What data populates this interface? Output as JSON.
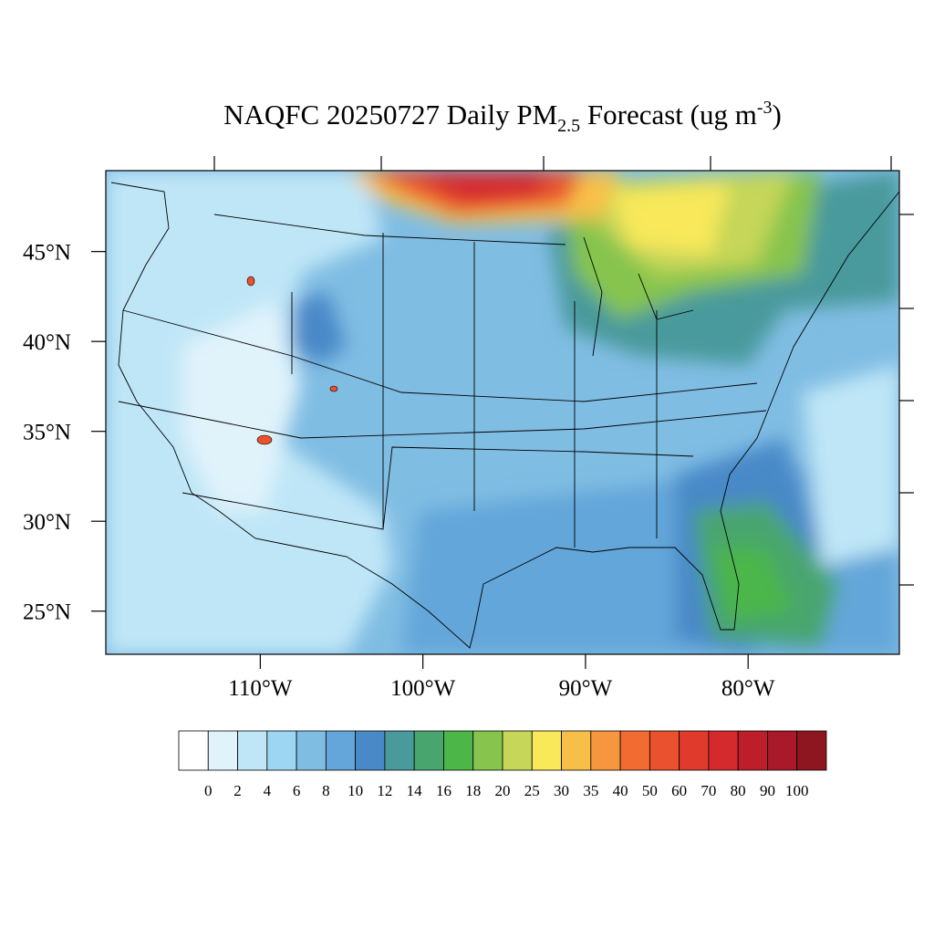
{
  "chart_data": {
    "type": "map",
    "title_parts": [
      "NAQFC 20250727 Daily PM",
      "2.5",
      " Forecast (ug m",
      "-3",
      ")"
    ],
    "xlim": [
      -119.5,
      -70.7
    ],
    "ylim": [
      22.6,
      49.5
    ],
    "xticks": [
      {
        "value": -110,
        "label": "110°W"
      },
      {
        "value": -100,
        "label": "100°W"
      },
      {
        "value": -90,
        "label": "90°W"
      },
      {
        "value": -80,
        "label": "80°W"
      }
    ],
    "yticks": [
      {
        "value": 45,
        "label": "45°N"
      },
      {
        "value": 40,
        "label": "40°N"
      },
      {
        "value": 35,
        "label": "35°N"
      },
      {
        "value": 30,
        "label": "30°N"
      },
      {
        "value": 25,
        "label": "25°N"
      }
    ],
    "levels": [
      0,
      2,
      4,
      6,
      8,
      10,
      12,
      14,
      16,
      18,
      20,
      25,
      30,
      35,
      40,
      50,
      60,
      70,
      80,
      90,
      100
    ],
    "colors": [
      "#ffffff",
      "#e0f3fb",
      "#bfe6f7",
      "#9dd6f2",
      "#80bde3",
      "#64a6d9",
      "#4a89c8",
      "#4a9a9c",
      "#48a56e",
      "#4cb649",
      "#86c44e",
      "#c5d658",
      "#f8e85a",
      "#f8bf48",
      "#f6973f",
      "#f26b30",
      "#e9512f",
      "#e03a2d",
      "#d42a2e",
      "#be1e2a",
      "#a8192a",
      "#8e1620"
    ]
  }
}
